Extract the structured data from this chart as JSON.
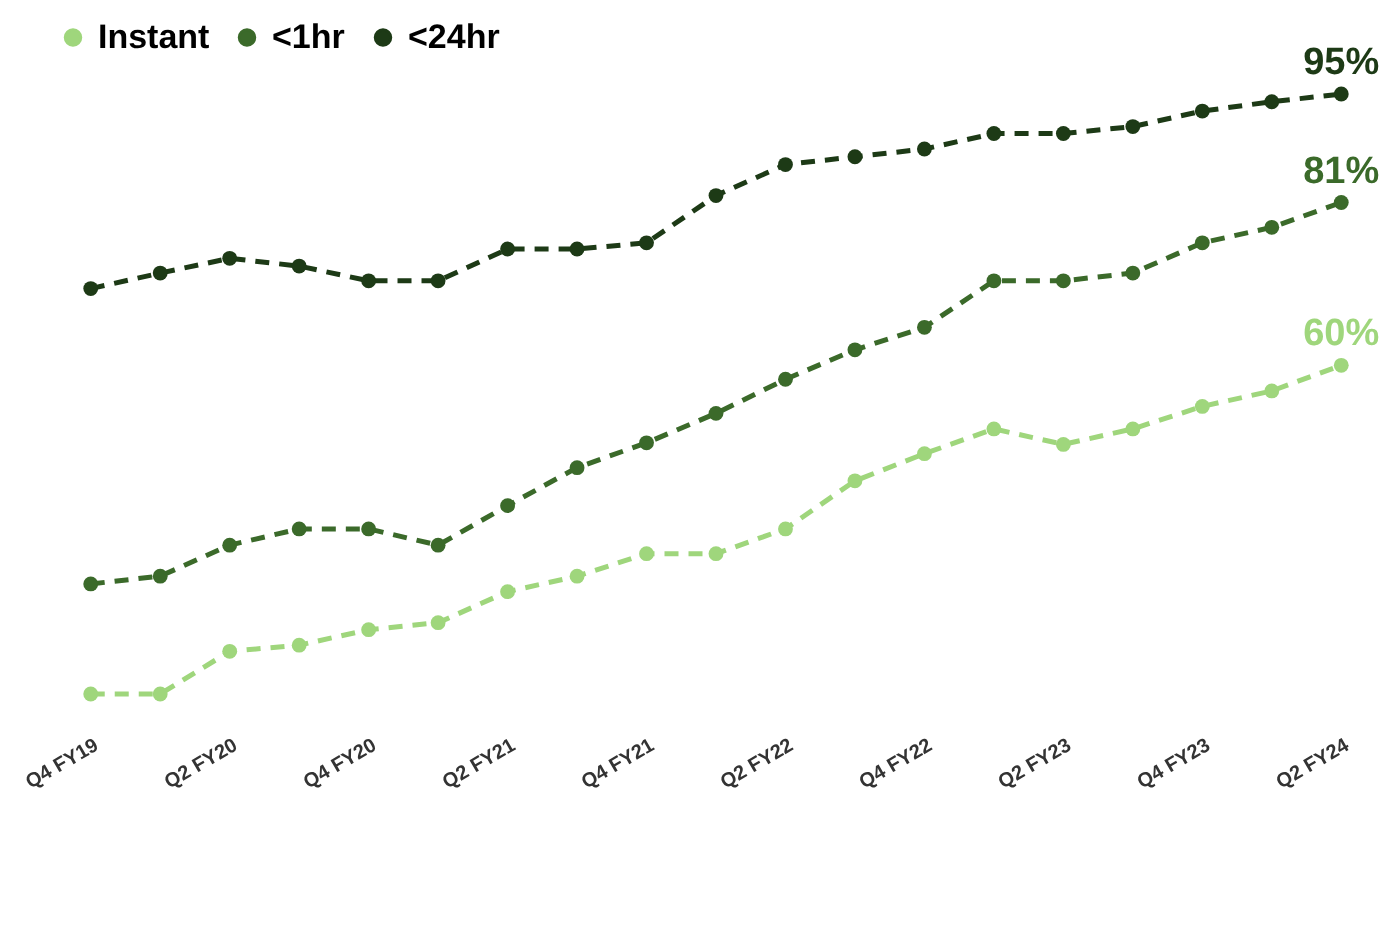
{
  "chart_data": {
    "type": "line",
    "categories": [
      "Q4 FY19",
      null,
      "Q2 FY20",
      null,
      "Q4 FY20",
      null,
      "Q2 FY21",
      null,
      "Q4 FY21",
      null,
      "Q2 FY22",
      null,
      "Q4 FY22",
      null,
      "Q2 FY23",
      null,
      "Q4 FY23",
      null,
      "Q2 FY24"
    ],
    "series": [
      {
        "name": "Instant",
        "color": "#9fd67c",
        "values": [
          17.6,
          17.6,
          23.1,
          23.9,
          25.9,
          26.8,
          30.8,
          32.8,
          35.7,
          35.7,
          38.9,
          45.1,
          48.6,
          51.8,
          49.8,
          51.8,
          54.7,
          56.7,
          60
        ],
        "value_labels": [
          null,
          null,
          null,
          null,
          null,
          null,
          null,
          null,
          null,
          null,
          null,
          null,
          null,
          null,
          null,
          null,
          null,
          null,
          "60%"
        ]
      },
      {
        "name": "<1hr",
        "color": "#3b6a2a",
        "values": [
          31.8,
          32.8,
          36.8,
          38.9,
          38.9,
          36.8,
          41.9,
          46.8,
          50,
          53.8,
          58.2,
          62,
          64.9,
          70.9,
          70.9,
          71.9,
          75.8,
          77.8,
          81
        ],
        "value_labels": [
          null,
          null,
          null,
          null,
          null,
          null,
          null,
          null,
          null,
          null,
          null,
          null,
          null,
          null,
          null,
          null,
          null,
          null,
          "81%"
        ]
      },
      {
        "name": "<24hr",
        "color": "#1d3a16",
        "values": [
          69.9,
          71.9,
          73.8,
          72.8,
          70.9,
          70.9,
          75,
          75,
          75.8,
          81.9,
          85.9,
          86.9,
          87.9,
          89.9,
          89.9,
          90.8,
          92.8,
          94,
          95
        ],
        "value_labels": [
          null,
          null,
          null,
          null,
          null,
          null,
          null,
          null,
          null,
          null,
          null,
          null,
          null,
          null,
          null,
          null,
          null,
          null,
          "95%"
        ]
      }
    ],
    "legend": "top",
    "marker": "circle",
    "line_style": "dashed",
    "grid": false,
    "tick_labels": "x"
  }
}
